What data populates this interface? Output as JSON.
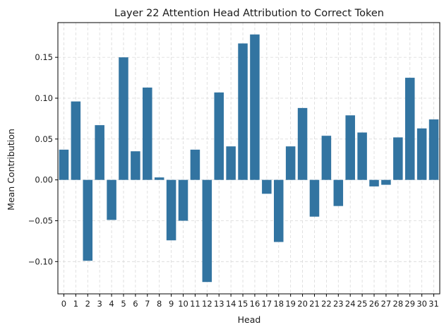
{
  "chart_data": {
    "type": "bar",
    "title": "Layer 22 Attention Head Attribution to Correct Token",
    "xlabel": "Head",
    "ylabel": "Mean Contribution",
    "categories": [
      "0",
      "1",
      "2",
      "3",
      "4",
      "5",
      "6",
      "7",
      "8",
      "9",
      "10",
      "11",
      "12",
      "13",
      "14",
      "15",
      "16",
      "17",
      "18",
      "19",
      "20",
      "21",
      "22",
      "23",
      "24",
      "25",
      "26",
      "27",
      "28",
      "29",
      "30",
      "31"
    ],
    "values": [
      0.037,
      0.096,
      -0.099,
      0.067,
      -0.049,
      0.15,
      0.035,
      0.113,
      0.003,
      -0.074,
      -0.05,
      0.037,
      -0.125,
      0.107,
      0.041,
      0.167,
      0.178,
      -0.017,
      -0.076,
      0.041,
      0.088,
      -0.045,
      0.054,
      -0.032,
      0.079,
      0.058,
      -0.008,
      -0.006,
      0.052,
      0.125,
      0.063,
      0.074
    ],
    "ylim": [
      -0.1395,
      0.1925
    ],
    "yticks": [
      -0.1,
      -0.05,
      0.0,
      0.05,
      0.1,
      0.15
    ],
    "ytick_labels": [
      "−0.10",
      "−0.05",
      "0.00",
      "0.05",
      "0.10",
      "0.15"
    ],
    "grid": true,
    "bar_color": "#3274a1",
    "grid_color": "#d9d9d9"
  }
}
